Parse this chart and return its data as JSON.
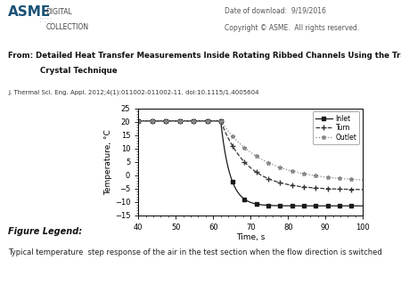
{
  "date_text": "Date of download:  9/19/2016",
  "copyright_text": "Copyright © ASME.  All rights reserved.",
  "from_label": "From: Detailed Heat Transfer Measurements Inside Rotating Ribbed Channels Using the Transient Liquid",
  "from_label2": "Crystal Technique",
  "journal_ref": "J. Thermal Sci. Eng. Appl. 2012;4(1):011002-011002-11. doi:10.1115/1.4005604",
  "xlabel": "Time, s",
  "ylabel": "Temperature, °C",
  "xlim": [
    40,
    100
  ],
  "ylim": [
    -15,
    25
  ],
  "xticks": [
    40,
    50,
    60,
    70,
    80,
    90,
    100
  ],
  "yticks": [
    -15,
    -10,
    -5,
    0,
    5,
    10,
    15,
    20,
    25
  ],
  "legend_labels": [
    "Inlet",
    "Turn",
    "Outlet"
  ],
  "figure_legend_title": "Figure Legend:",
  "figure_legend_text": "Typical temperature  step response of the air in the test section when the flow direction is switched",
  "header_bg": "#e8e8e8",
  "page_bg": "#ffffff",
  "t_step": 62.0,
  "inlet_before": 20.3,
  "inlet_after_final": -11.5,
  "turn_after_final": -5.5,
  "outlet_after_final": -2.5,
  "tau_inlet": 2.5,
  "tau_turn": 7.0,
  "tau_outlet": 11.0
}
